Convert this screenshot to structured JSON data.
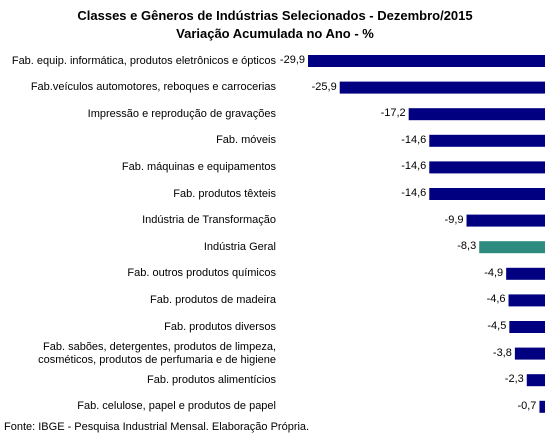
{
  "chart_data": {
    "type": "bar",
    "orientation": "horizontal",
    "title": "Classes e Gêneros de Indústrias Selecionados - Dezembro/2015",
    "subtitle": "Variação Acumulada no Ano - %",
    "categories": [
      "Fab. equip. informática, produtos eletrônicos e ópticos",
      "Fab.veículos automotores, reboques e carrocerias",
      "Impressão e reprodução de gravações",
      "Fab. móveis",
      "Fab. máquinas e equipamentos",
      "Fab. produtos têxteis",
      "Indústria de Transformação",
      "Indústria Geral",
      "Fab. outros produtos químicos",
      "Fab. produtos de madeira",
      "Fab. produtos diversos",
      "Fab. sabões, detergentes, produtos de limpeza, cosméticos, produtos de perfumaria e de higiene",
      "Fab. produtos alimentícios",
      "Fab. celulose, papel e produtos de papel"
    ],
    "values": [
      -29.9,
      -25.9,
      -17.2,
      -14.6,
      -14.6,
      -14.6,
      -9.9,
      -8.3,
      -4.9,
      -4.6,
      -4.5,
      -3.8,
      -2.3,
      -0.7
    ],
    "value_labels": [
      "-29,9",
      "-25,9",
      "-17,2",
      "-14,6",
      "-14,6",
      "-14,6",
      "-9,9",
      "-8,3",
      "-4,9",
      "-4,6",
      "-4,5",
      "-3,8",
      "-2,3",
      "-0,7"
    ],
    "colors": [
      "#000080",
      "#000080",
      "#000080",
      "#000080",
      "#000080",
      "#000080",
      "#000080",
      "#2e8b80",
      "#000080",
      "#000080",
      "#000080",
      "#000080",
      "#000080",
      "#000080"
    ],
    "source": "Fonte: IBGE - Pesquisa Industrial Mensal. Elaboração Própria."
  }
}
